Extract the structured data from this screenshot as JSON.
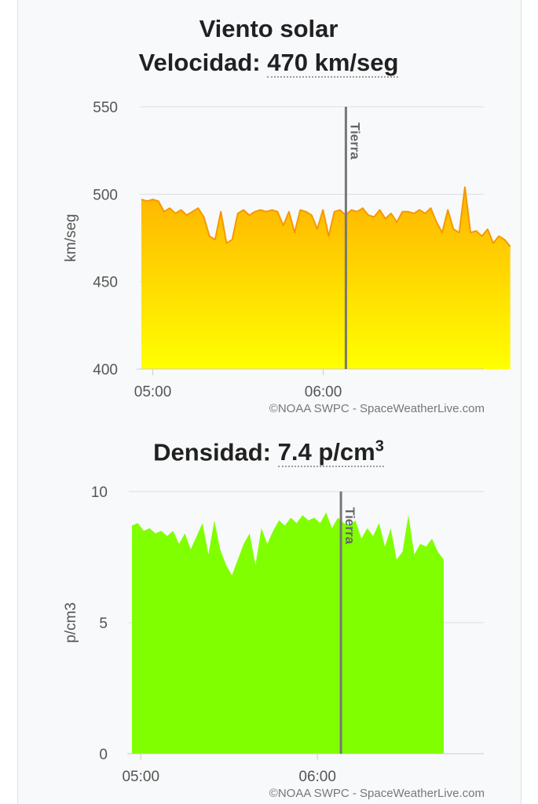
{
  "speed": {
    "heading": "Viento solar",
    "label": "Velocidad:",
    "value": "470 km/seg"
  },
  "density": {
    "label": "Densidad:",
    "value": "7.4 p/cm",
    "value_sup": "3"
  },
  "marker_label": "Tierra",
  "credit": "©NOAA SWPC - SpaceWeatherLive.com",
  "colors": {
    "speed_fill_top": "#ffb300",
    "speed_fill_bottom": "#ffff00",
    "speed_line": "#f59800",
    "density_fill": "#80ff00",
    "marker": "#777777"
  },
  "chart_data": [
    {
      "type": "area",
      "ylabel": "km/seg",
      "ylim": [
        400,
        550
      ],
      "yticks": [
        "400",
        "450",
        "500",
        "550"
      ],
      "xticks": [
        {
          "label": "05:00",
          "hour": 5.0
        },
        {
          "label": "06:00",
          "hour": 6.0
        }
      ],
      "xlim": [
        4.933,
        6.933
      ],
      "marker_hour": 6.133,
      "grid": true,
      "x_start": 4.933,
      "x_step": 0.0333,
      "values": [
        497,
        496,
        497,
        496,
        490,
        492,
        489,
        491,
        488,
        490,
        492,
        487,
        476,
        474,
        490,
        472,
        474,
        489,
        491,
        488,
        490,
        491,
        490,
        491,
        490,
        482,
        490,
        478,
        491,
        490,
        488,
        480,
        491,
        476,
        490,
        491,
        488,
        491,
        490,
        492,
        488,
        487,
        491,
        486,
        489,
        484,
        490,
        490,
        489,
        491,
        489,
        492,
        484,
        478,
        491,
        480,
        478,
        504,
        478,
        479,
        476,
        480,
        472,
        476,
        474,
        470
      ]
    },
    {
      "type": "area",
      "ylabel": "p/cm3",
      "ylim": [
        0,
        10
      ],
      "yticks": [
        "0",
        "5",
        "10"
      ],
      "xticks": [
        {
          "label": "05:00",
          "hour": 5.0
        },
        {
          "label": "06:00",
          "hour": 6.0
        }
      ],
      "xlim": [
        4.95,
        6.933
      ],
      "marker_hour": 6.133,
      "grid": true,
      "x_start": 4.95,
      "x_step": 0.0333,
      "values": [
        8.7,
        8.8,
        8.5,
        8.6,
        8.4,
        8.5,
        8.3,
        8.5,
        8.0,
        8.4,
        7.8,
        8.3,
        8.8,
        7.6,
        8.9,
        7.8,
        7.2,
        6.8,
        7.4,
        8.0,
        8.4,
        7.2,
        8.6,
        8.0,
        8.5,
        8.9,
        8.7,
        9.0,
        8.8,
        9.1,
        8.9,
        9.0,
        8.8,
        9.2,
        8.6,
        9.0,
        8.8,
        8.7,
        8.9,
        8.2,
        8.6,
        8.3,
        8.8,
        7.9,
        8.6,
        7.4,
        7.7,
        9.1,
        7.6,
        8.0,
        7.9,
        8.2,
        7.7,
        7.4
      ]
    }
  ]
}
